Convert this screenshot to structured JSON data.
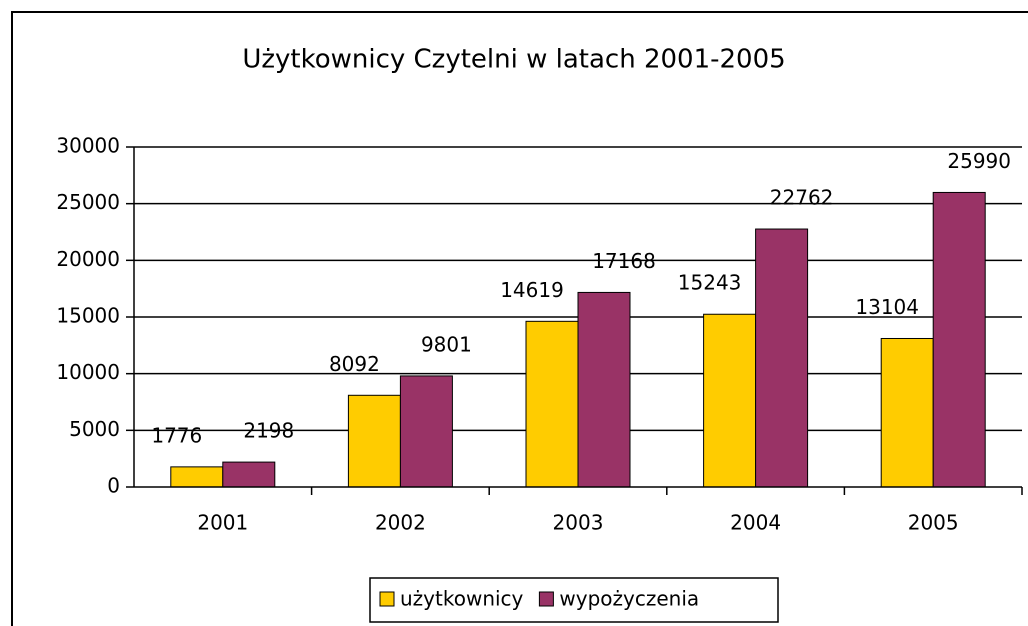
{
  "chart_data": {
    "type": "bar",
    "title": "Użytkownicy Czytelni w latach 2001-2005",
    "categories": [
      "2001",
      "2002",
      "2003",
      "2004",
      "2005"
    ],
    "series": [
      {
        "name": "użytkownicy",
        "color": "#ffcc00",
        "values": [
          1776,
          8092,
          14619,
          15243,
          13104
        ]
      },
      {
        "name": "wypożyczenia",
        "color": "#993366",
        "values": [
          2198,
          9801,
          17168,
          22762,
          25990
        ]
      }
    ],
    "ylim": [
      0,
      30000
    ],
    "yticks": [
      0,
      5000,
      10000,
      15000,
      20000,
      25000,
      30000
    ],
    "grid": true,
    "legend": "bottom"
  }
}
